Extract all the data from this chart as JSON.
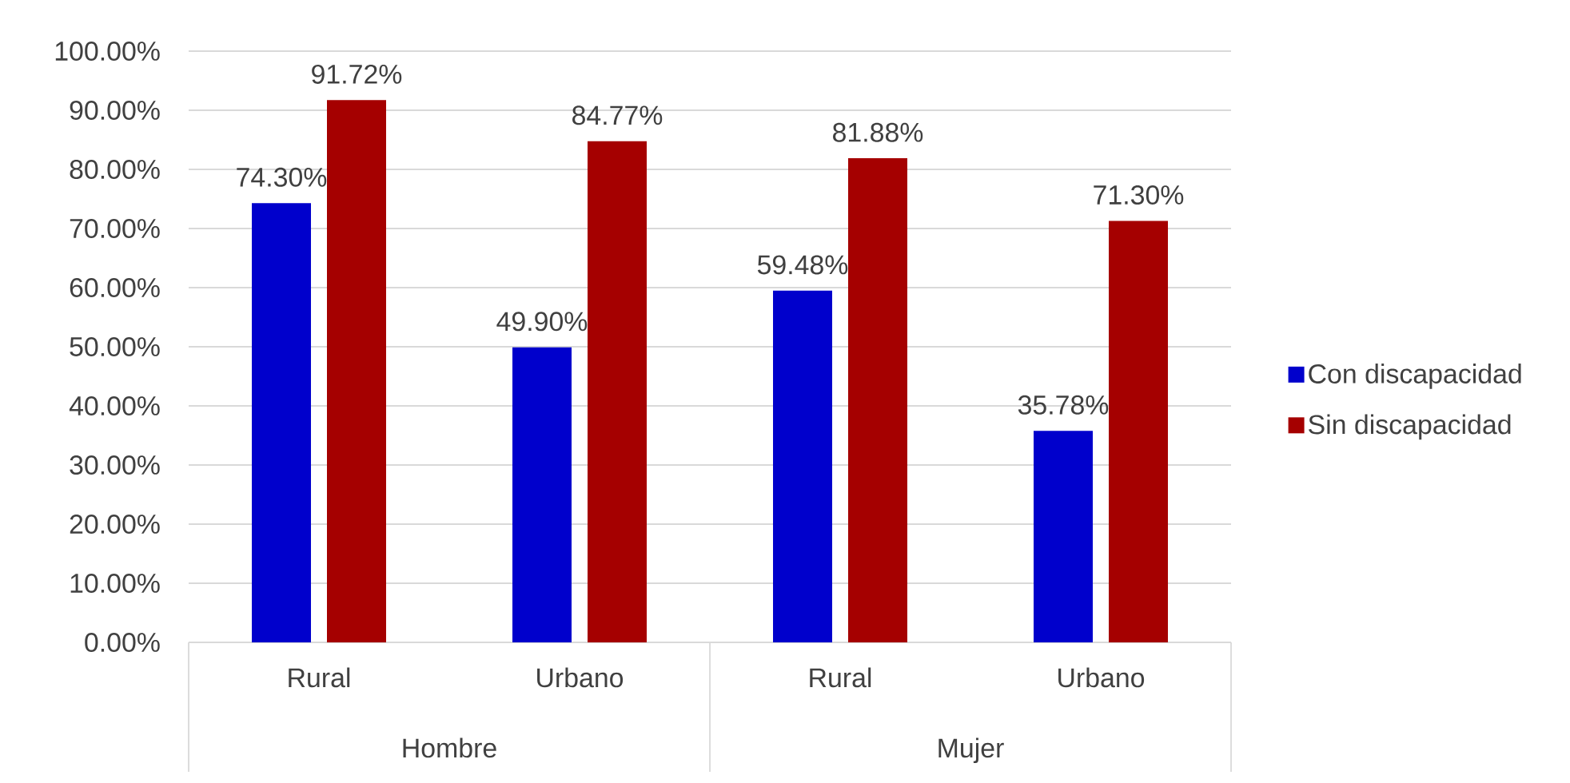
{
  "chart_data": {
    "type": "bar",
    "categories": [
      "Rural",
      "Urbano",
      "Rural",
      "Urbano"
    ],
    "series": [
      {
        "name": "Con discapacidad",
        "color": "#0000cc",
        "values": [
          74.3,
          49.9,
          59.48,
          35.78
        ],
        "value_labels": [
          "74.30%",
          "49.90%",
          "59.48%",
          "35.78%"
        ]
      },
      {
        "name": "Sin discapacidad",
        "color": "#a50000",
        "values": [
          91.72,
          84.77,
          81.88,
          71.3
        ],
        "value_labels": [
          "91.72%",
          "84.77%",
          "81.88%",
          "71.30%"
        ]
      }
    ],
    "ylim": [
      0,
      100
    ],
    "yticks": [
      {
        "value": 0,
        "label": "0.00%"
      },
      {
        "value": 10,
        "label": "10.00%"
      },
      {
        "value": 20,
        "label": "20.00%"
      },
      {
        "value": 30,
        "label": "30.00%"
      },
      {
        "value": 40,
        "label": "40.00%"
      },
      {
        "value": 50,
        "label": "50.00%"
      },
      {
        "value": 60,
        "label": "60.00%"
      },
      {
        "value": 70,
        "label": "70.00%"
      },
      {
        "value": 80,
        "label": "80.00%"
      },
      {
        "value": 90,
        "label": "90.00%"
      },
      {
        "value": 100,
        "label": "100.00%"
      }
    ],
    "grid": "y",
    "legend": "right",
    "annotations": [
      "Hombre",
      "Mujer"
    ]
  }
}
